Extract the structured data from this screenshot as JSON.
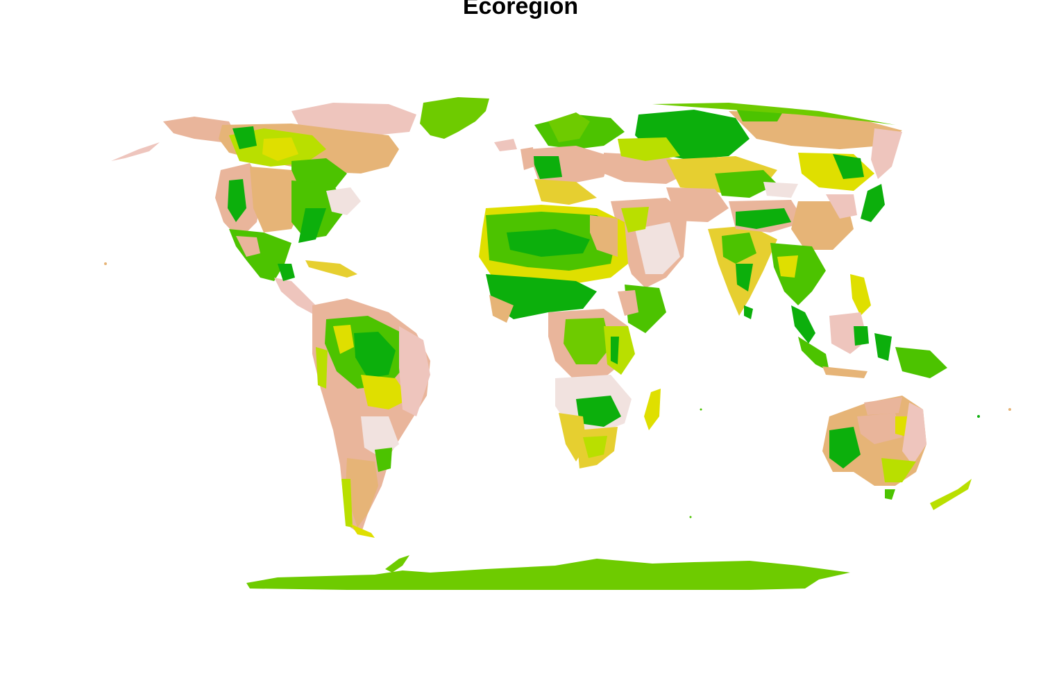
{
  "title": "Ecoregion",
  "palette": {
    "dark_green": "#0caf0c",
    "green": "#4cc300",
    "lime": "#6ecb00",
    "yellow_green": "#b9df00",
    "yellow": "#dfdf00",
    "mustard": "#e6cf30",
    "tan": "#e6b477",
    "salmon": "#e9b59b",
    "pink": "#eec5bd",
    "pale_pink": "#f1e2df"
  }
}
